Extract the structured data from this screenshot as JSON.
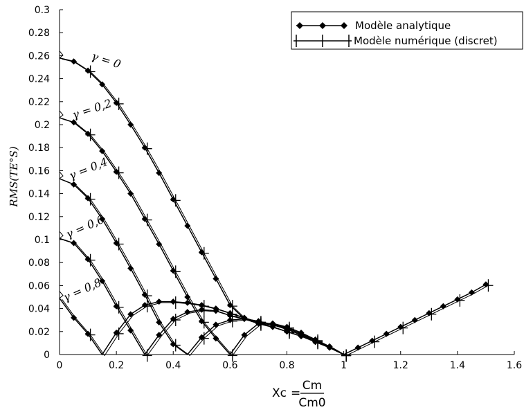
{
  "chart_data": {
    "type": "line",
    "xlabel": {
      "main": "Xc",
      "equals": "=",
      "numerator": "Cm",
      "denominator": "Cm0"
    },
    "ylabel": "RMS(TE°S)",
    "xlim": [
      0,
      1.6
    ],
    "ylim": [
      0,
      0.3
    ],
    "x_ticks": [
      "0",
      "0.2",
      "0.4",
      "0.6",
      "0.8",
      "1",
      "1.2",
      "1.4",
      "1.6"
    ],
    "y_ticks": [
      "0",
      "0.02",
      "0.04",
      "0.06",
      "0.08",
      "0.1",
      "0.12",
      "0.14",
      "0.16",
      "0.18",
      "0.2",
      "0.22",
      "0.24",
      "0.26",
      "0.28",
      "0.3"
    ],
    "legend": {
      "position": "top-right",
      "entries": [
        {
          "label": "Modèle analytique",
          "marker": "diamond"
        },
        {
          "label": "Modèle numérique (discret)",
          "marker": "plus"
        }
      ]
    },
    "annotations": [
      {
        "text": "γ = 0",
        "x": 0.11,
        "y": 0.257
      },
      {
        "text": "γ = 0,2",
        "x": 0.05,
        "y": 0.205
      },
      {
        "text": "γ = 0,4",
        "x": 0.04,
        "y": 0.152
      },
      {
        "text": "γ = 0,6",
        "x": 0.03,
        "y": 0.101
      },
      {
        "text": "γ = 0,8",
        "x": 0.02,
        "y": 0.046
      }
    ],
    "series": [
      {
        "name": "γ = 0",
        "x": [
          0,
          0.05,
          0.1,
          0.15,
          0.2,
          0.25,
          0.3,
          0.35,
          0.4,
          0.45,
          0.5,
          0.55,
          0.6,
          0.65,
          0.7,
          0.75,
          0.8,
          0.85,
          0.9,
          0.95,
          1.0,
          1.05,
          1.1,
          1.15,
          1.2,
          1.25,
          1.3,
          1.35,
          1.4,
          1.45,
          1.5
        ],
        "y": [
          0.258,
          0.255,
          0.247,
          0.235,
          0.219,
          0.2,
          0.18,
          0.158,
          0.135,
          0.112,
          0.089,
          0.066,
          0.043,
          0.031,
          0.029,
          0.026,
          0.023,
          0.018,
          0.012,
          0.007,
          0.0,
          0.006,
          0.012,
          0.018,
          0.024,
          0.03,
          0.036,
          0.042,
          0.048,
          0.054,
          0.061
        ]
      },
      {
        "name": "γ = 0,2",
        "x": [
          0,
          0.05,
          0.1,
          0.15,
          0.2,
          0.25,
          0.3,
          0.35,
          0.4,
          0.45,
          0.5,
          0.55,
          0.6,
          0.65,
          0.7,
          0.75,
          0.8,
          0.85,
          0.9,
          0.95,
          1.0
        ],
        "y": [
          0.206,
          0.202,
          0.192,
          0.177,
          0.159,
          0.14,
          0.118,
          0.096,
          0.073,
          0.05,
          0.029,
          0.014,
          0.0,
          0.017,
          0.027,
          0.027,
          0.024,
          0.019,
          0.013,
          0.007,
          0.0
        ]
      },
      {
        "name": "γ = 0,4",
        "x": [
          0,
          0.05,
          0.1,
          0.15,
          0.2,
          0.25,
          0.3,
          0.35,
          0.4,
          0.45,
          0.5,
          0.55,
          0.6,
          0.65,
          0.7,
          0.75,
          0.8,
          0.85,
          0.9,
          0.95,
          1.0
        ],
        "y": [
          0.153,
          0.148,
          0.136,
          0.118,
          0.097,
          0.075,
          0.052,
          0.028,
          0.009,
          0.0,
          0.015,
          0.026,
          0.03,
          0.031,
          0.029,
          0.026,
          0.022,
          0.017,
          0.012,
          0.006,
          0.0
        ]
      },
      {
        "name": "γ = 0,6",
        "x": [
          0,
          0.05,
          0.1,
          0.15,
          0.2,
          0.25,
          0.3,
          0.35,
          0.4,
          0.45,
          0.5,
          0.55,
          0.6,
          0.65,
          0.7,
          0.75,
          0.8,
          0.85,
          0.9,
          0.95,
          1.0
        ],
        "y": [
          0.101,
          0.097,
          0.083,
          0.064,
          0.042,
          0.021,
          0.0,
          0.017,
          0.031,
          0.037,
          0.039,
          0.038,
          0.034,
          0.031,
          0.027,
          0.024,
          0.02,
          0.016,
          0.011,
          0.006,
          0.0
        ]
      },
      {
        "name": "γ = 0,8",
        "x": [
          0,
          0.05,
          0.1,
          0.15,
          0.2,
          0.25,
          0.3,
          0.35,
          0.4,
          0.45,
          0.5,
          0.55,
          0.6,
          0.65,
          0.7,
          0.75,
          0.8,
          0.85,
          0.9,
          0.95,
          1.0
        ],
        "y": [
          0.049,
          0.032,
          0.018,
          0.0,
          0.019,
          0.035,
          0.043,
          0.046,
          0.046,
          0.045,
          0.043,
          0.04,
          0.036,
          0.032,
          0.028,
          0.024,
          0.02,
          0.016,
          0.011,
          0.006,
          0.0
        ]
      }
    ]
  }
}
